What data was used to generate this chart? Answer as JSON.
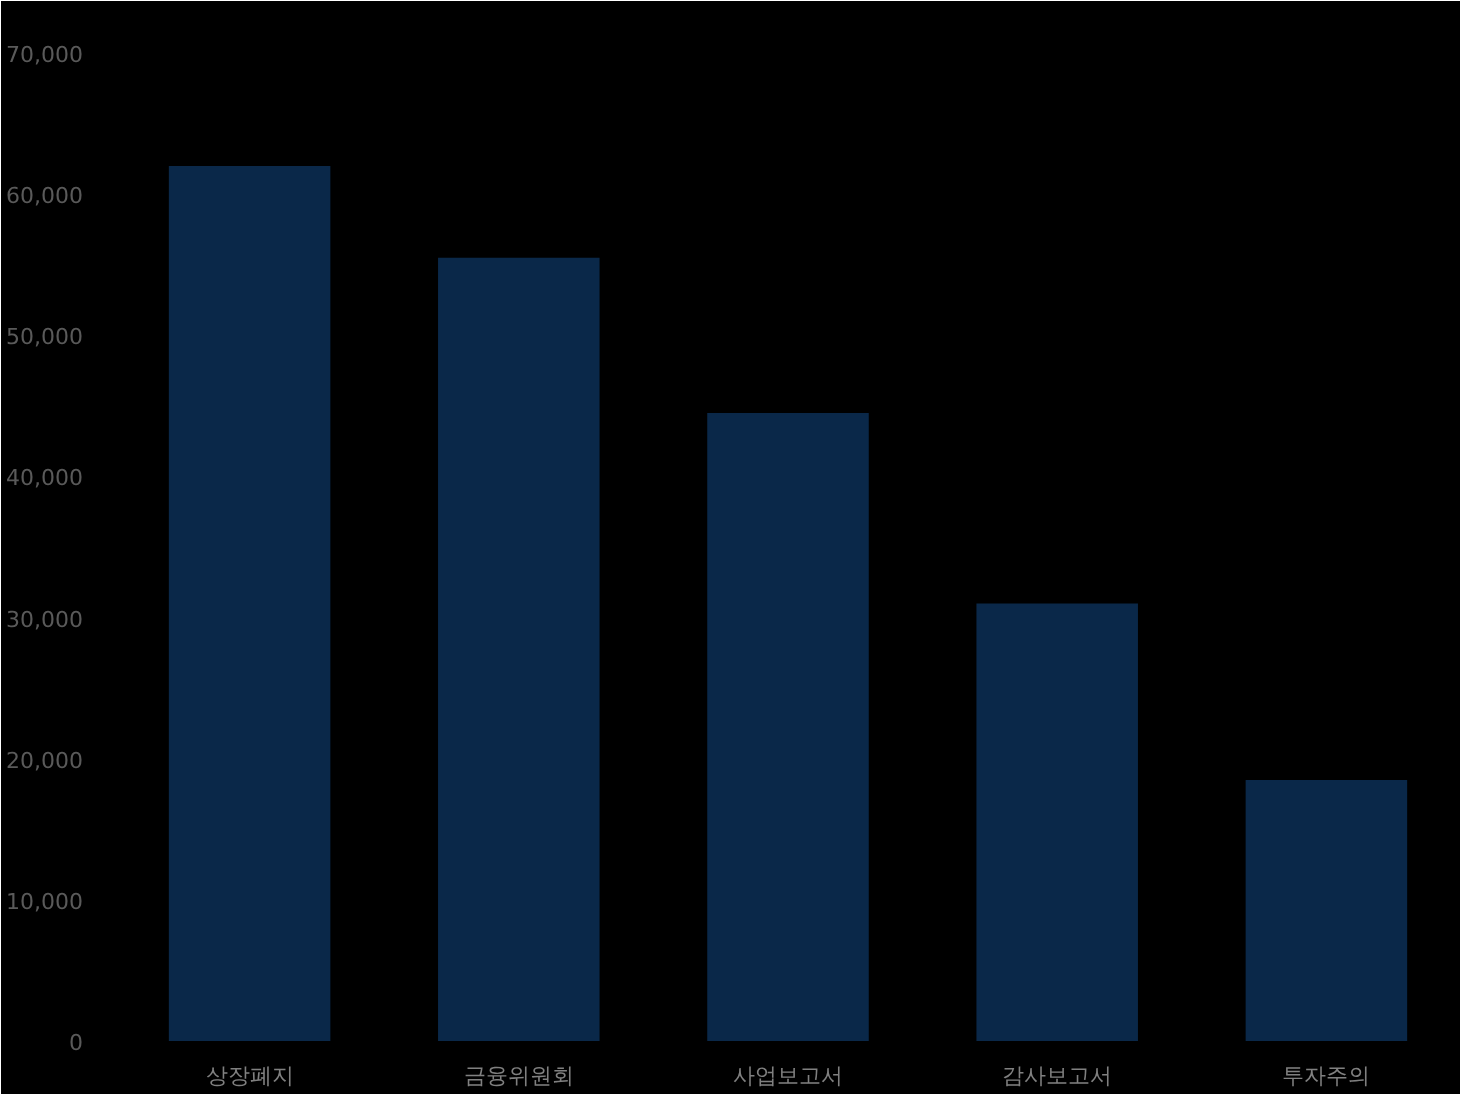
{
  "chart_data": {
    "type": "bar",
    "categories": [
      "상장폐지",
      "금융위원회",
      "사업보고서",
      "감사보고서",
      "투자주의"
    ],
    "series": [
      {
        "color": "#0a2849",
        "values": [
          62000,
          55500,
          44500,
          31000,
          18500
        ]
      }
    ],
    "ylim": [
      0,
      70000
    ],
    "yticks": [
      {
        "value": 0,
        "label": "0"
      },
      {
        "value": 10000,
        "label": "10,000"
      },
      {
        "value": 20000,
        "label": "20,000"
      },
      {
        "value": 30000,
        "label": "30,000"
      },
      {
        "value": 40000,
        "label": "40,000"
      },
      {
        "value": 50000,
        "label": "50,000"
      },
      {
        "value": 60000,
        "label": "60,000"
      },
      {
        "value": 70000,
        "label": "70,000"
      }
    ],
    "grid": false
  }
}
